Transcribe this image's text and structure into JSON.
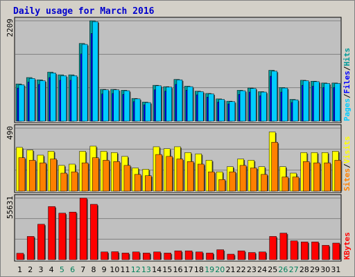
{
  "chart_data": {
    "type": "bar",
    "title": "Daily usage for March 2016",
    "categories": [
      "1",
      "2",
      "3",
      "4",
      "5",
      "6",
      "7",
      "8",
      "9",
      "10",
      "11",
      "12",
      "13",
      "14",
      "15",
      "16",
      "17",
      "18",
      "19",
      "20",
      "21",
      "22",
      "23",
      "24",
      "25",
      "26",
      "27",
      "28",
      "29",
      "30",
      "31"
    ],
    "weekend_days": [
      "5",
      "6",
      "12",
      "13",
      "19",
      "20",
      "26",
      "27"
    ],
    "colors": {
      "hits": "#00ccff",
      "files": "#0000ff",
      "pages": "#00ccff",
      "visits": "#ffff00",
      "sites": "#ff8000",
      "kbytes": "#ff0000",
      "hits_shadow": "#009999",
      "weekday_tick": "#000000",
      "weekend_tick": "#00805c",
      "title": "#0000cc",
      "panel_bg": "#c0c0c0",
      "frame_bg": "#d4d0c8"
    },
    "panels": [
      {
        "ymax_label": "2209",
        "ylim": [
          0,
          2209
        ],
        "legend": [
          "Pages",
          "/",
          "Files",
          "/",
          "Hits"
        ],
        "legend_colors": [
          "#00ccff",
          "#000000",
          "#0000ff",
          "#000000",
          "#009999"
        ],
        "series": [
          {
            "name": "Hits",
            "color": "#009999",
            "values": [
              820,
              960,
              910,
              1080,
              1020,
              1020,
              1710,
              2209,
              700,
              700,
              680,
              500,
              420,
              790,
              760,
              920,
              770,
              660,
              610,
              490,
              440,
              680,
              730,
              650,
              1120,
              740,
              480,
              900,
              880,
              840,
              840
            ]
          },
          {
            "name": "Files",
            "color": "#0000ff",
            "values": [
              730,
              860,
              810,
              960,
              900,
              900,
              1480,
              1930,
              600,
              610,
              590,
              430,
              360,
              690,
              660,
              810,
              680,
              580,
              530,
              420,
              380,
              590,
              640,
              560,
              990,
              640,
              410,
              790,
              770,
              740,
              740
            ]
          },
          {
            "name": "Pages",
            "color": "#00ccff",
            "values": [
              800,
              940,
              890,
              1060,
              1000,
              1000,
              1690,
              2190,
              690,
              690,
              670,
              490,
              410,
              780,
              750,
              910,
              760,
              650,
              600,
              480,
              430,
              670,
              720,
              640,
              1100,
              730,
              470,
              890,
              870,
              830,
              830
            ]
          }
        ]
      },
      {
        "ymax_label": "490",
        "ylim": [
          0,
          490
        ],
        "legend": [
          "Sites",
          "/",
          "Visits"
        ],
        "legend_colors": [
          "#ff8000",
          "#000000",
          "#ffff00"
        ],
        "series": [
          {
            "name": "Visits",
            "color": "#ffff00",
            "values": [
              340,
              320,
              280,
              310,
              200,
              210,
              310,
              350,
              310,
              300,
              270,
              180,
              170,
              345,
              330,
              345,
              300,
              290,
              240,
              150,
              190,
              250,
              240,
              190,
              460,
              190,
              140,
              300,
              300,
              300,
              310
            ]
          },
          {
            "name": "Sites",
            "color": "#ff8000",
            "values": [
              260,
              240,
              220,
              250,
              140,
              150,
              220,
              260,
              240,
              230,
              200,
              130,
              120,
              285,
              270,
              250,
              230,
              210,
              150,
              90,
              150,
              200,
              180,
              130,
              380,
              110,
              110,
              230,
              220,
              220,
              240
            ]
          }
        ]
      },
      {
        "ymax_label": "55631",
        "ylim": [
          0,
          55631
        ],
        "legend": [
          "KBytes"
        ],
        "legend_colors": [
          "#ff0000"
        ],
        "series": [
          {
            "name": "KBytes",
            "color": "#ff0000",
            "values": [
              5800,
              21000,
              32000,
              48000,
              42000,
              43000,
              55631,
              50000,
              7000,
              7200,
              6000,
              7000,
              6000,
              7000,
              6000,
              8000,
              8000,
              7000,
              6000,
              9000,
              5000,
              8000,
              6500,
              7000,
              21000,
              24000,
              17000,
              16000,
              16000,
              13000,
              15000
            ]
          }
        ]
      }
    ]
  }
}
